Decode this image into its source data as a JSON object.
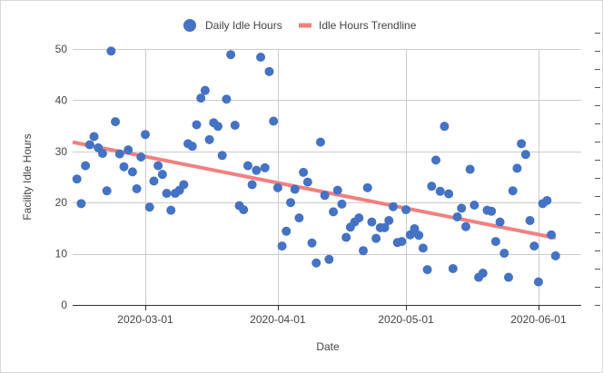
{
  "chart_data": {
    "type": "scatter",
    "title": "",
    "xlabel": "Date",
    "ylabel": "Facility Idle Hours",
    "xlim": [
      "2020-02-13",
      "2020-06-11"
    ],
    "ylim": [
      0,
      50
    ],
    "y_ticks": [
      0,
      10,
      20,
      30,
      40,
      50
    ],
    "x_ticks": [
      "2020-03-01",
      "2020-04-01",
      "2020-05-01",
      "2020-06-01"
    ],
    "grid": true,
    "legend_position": "top-center",
    "series": [
      {
        "name": "Daily Idle Hours",
        "kind": "points",
        "color": "#4472c4",
        "points": [
          [
            "2020-02-14",
            24.6
          ],
          [
            "2020-02-15",
            19.8
          ],
          [
            "2020-02-16",
            27.2
          ],
          [
            "2020-02-17",
            31.3
          ],
          [
            "2020-02-18",
            32.9
          ],
          [
            "2020-02-19",
            30.7
          ],
          [
            "2020-02-20",
            29.6
          ],
          [
            "2020-02-21",
            22.3
          ],
          [
            "2020-02-22",
            49.6
          ],
          [
            "2020-02-23",
            35.8
          ],
          [
            "2020-02-24",
            29.5
          ],
          [
            "2020-02-25",
            27.0
          ],
          [
            "2020-02-26",
            30.3
          ],
          [
            "2020-02-27",
            26.0
          ],
          [
            "2020-02-28",
            22.7
          ],
          [
            "2020-02-29",
            28.9
          ],
          [
            "2020-03-01",
            33.3
          ],
          [
            "2020-03-02",
            19.1
          ],
          [
            "2020-03-03",
            24.2
          ],
          [
            "2020-03-04",
            27.2
          ],
          [
            "2020-03-05",
            25.5
          ],
          [
            "2020-03-06",
            21.8
          ],
          [
            "2020-03-07",
            18.5
          ],
          [
            "2020-03-08",
            21.8
          ],
          [
            "2020-03-09",
            22.4
          ],
          [
            "2020-03-10",
            23.5
          ],
          [
            "2020-03-11",
            31.5
          ],
          [
            "2020-03-12",
            31.0
          ],
          [
            "2020-03-13",
            35.2
          ],
          [
            "2020-03-14",
            40.4
          ],
          [
            "2020-03-15",
            41.9
          ],
          [
            "2020-03-16",
            32.3
          ],
          [
            "2020-03-17",
            35.6
          ],
          [
            "2020-03-18",
            34.9
          ],
          [
            "2020-03-19",
            29.2
          ],
          [
            "2020-03-20",
            40.2
          ],
          [
            "2020-03-21",
            48.9
          ],
          [
            "2020-03-22",
            35.1
          ],
          [
            "2020-03-23",
            19.4
          ],
          [
            "2020-03-24",
            18.6
          ],
          [
            "2020-03-25",
            27.2
          ],
          [
            "2020-03-26",
            23.5
          ],
          [
            "2020-03-27",
            26.3
          ],
          [
            "2020-03-28",
            48.4
          ],
          [
            "2020-03-29",
            26.8
          ],
          [
            "2020-03-30",
            45.6
          ],
          [
            "2020-03-31",
            35.9
          ],
          [
            "2020-04-01",
            22.9
          ],
          [
            "2020-04-02",
            11.5
          ],
          [
            "2020-04-03",
            14.4
          ],
          [
            "2020-04-04",
            20.0
          ],
          [
            "2020-04-05",
            22.6
          ],
          [
            "2020-04-06",
            17.0
          ],
          [
            "2020-04-07",
            25.9
          ],
          [
            "2020-04-08",
            24.0
          ],
          [
            "2020-04-09",
            12.1
          ],
          [
            "2020-04-10",
            8.2
          ],
          [
            "2020-04-11",
            31.8
          ],
          [
            "2020-04-12",
            21.4
          ],
          [
            "2020-04-13",
            8.9
          ],
          [
            "2020-04-14",
            18.2
          ],
          [
            "2020-04-15",
            22.4
          ],
          [
            "2020-04-16",
            19.7
          ],
          [
            "2020-04-17",
            13.2
          ],
          [
            "2020-04-18",
            15.2
          ],
          [
            "2020-04-19",
            16.2
          ],
          [
            "2020-04-20",
            17.0
          ],
          [
            "2020-04-21",
            10.6
          ],
          [
            "2020-04-22",
            22.9
          ],
          [
            "2020-04-23",
            16.2
          ],
          [
            "2020-04-24",
            13.0
          ],
          [
            "2020-04-25",
            15.1
          ],
          [
            "2020-04-26",
            15.1
          ],
          [
            "2020-04-27",
            16.5
          ],
          [
            "2020-04-28",
            19.2
          ],
          [
            "2020-04-29",
            12.2
          ],
          [
            "2020-04-30",
            12.4
          ],
          [
            "2020-05-01",
            18.6
          ],
          [
            "2020-05-02",
            13.7
          ],
          [
            "2020-05-03",
            14.9
          ],
          [
            "2020-05-04",
            13.6
          ],
          [
            "2020-05-05",
            11.1
          ],
          [
            "2020-05-06",
            6.9
          ],
          [
            "2020-05-07",
            23.2
          ],
          [
            "2020-05-08",
            28.3
          ],
          [
            "2020-05-09",
            22.2
          ],
          [
            "2020-05-10",
            34.9
          ],
          [
            "2020-05-11",
            21.7
          ],
          [
            "2020-05-12",
            7.1
          ],
          [
            "2020-05-13",
            17.2
          ],
          [
            "2020-05-14",
            18.9
          ],
          [
            "2020-05-15",
            15.3
          ],
          [
            "2020-05-16",
            26.5
          ],
          [
            "2020-05-17",
            19.5
          ],
          [
            "2020-05-18",
            5.4
          ],
          [
            "2020-05-19",
            6.2
          ],
          [
            "2020-05-20",
            18.5
          ],
          [
            "2020-05-21",
            18.3
          ],
          [
            "2020-05-22",
            12.4
          ],
          [
            "2020-05-23",
            16.2
          ],
          [
            "2020-05-24",
            10.1
          ],
          [
            "2020-05-25",
            5.4
          ],
          [
            "2020-05-26",
            22.3
          ],
          [
            "2020-05-27",
            26.7
          ],
          [
            "2020-05-28",
            31.5
          ],
          [
            "2020-05-29",
            29.4
          ],
          [
            "2020-05-30",
            16.5
          ],
          [
            "2020-05-31",
            11.5
          ],
          [
            "2020-06-01",
            4.5
          ],
          [
            "2020-06-02",
            19.8
          ],
          [
            "2020-06-03",
            20.4
          ],
          [
            "2020-06-04",
            13.7
          ],
          [
            "2020-06-05",
            9.6
          ]
        ]
      },
      {
        "name": "Idle Hours Trendline",
        "kind": "line",
        "color": "#f28080",
        "points": [
          [
            "2020-02-13",
            31.8
          ],
          [
            "2020-06-05",
            13.1
          ]
        ]
      }
    ]
  }
}
